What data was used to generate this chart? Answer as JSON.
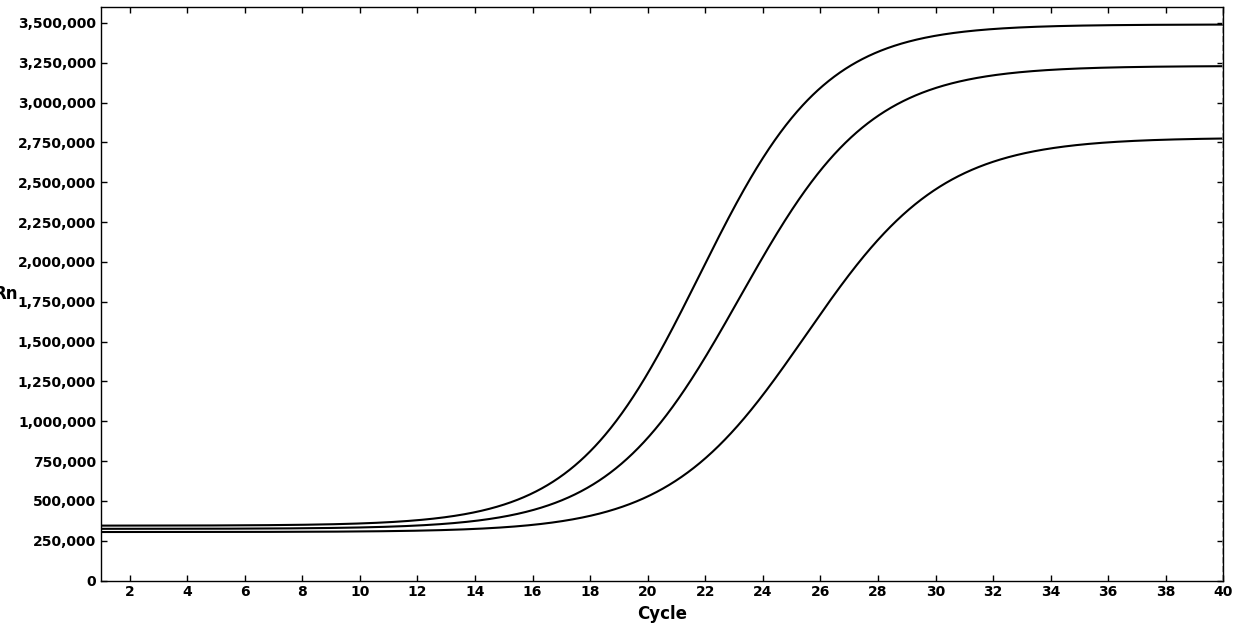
{
  "title": "",
  "xlabel": "Cycle",
  "ylabel": "Rn",
  "xlim": [
    1,
    40
  ],
  "ylim": [
    0,
    3600000
  ],
  "x_ticks": [
    2,
    4,
    6,
    8,
    10,
    12,
    14,
    16,
    18,
    20,
    22,
    24,
    26,
    28,
    30,
    32,
    34,
    36,
    38,
    40
  ],
  "y_ticks": [
    0,
    250000,
    500000,
    750000,
    1000000,
    1250000,
    1500000,
    1750000,
    2000000,
    2250000,
    2500000,
    2750000,
    3000000,
    3250000,
    3500000
  ],
  "curves": [
    {
      "baseline": 305000,
      "plateau": 2780000,
      "midpoint": 25.5,
      "steepness": 0.42,
      "color": "#000000"
    },
    {
      "baseline": 325000,
      "plateau": 3230000,
      "midpoint": 23.2,
      "steepness": 0.44,
      "color": "#000000"
    },
    {
      "baseline": 345000,
      "plateau": 3490000,
      "midpoint": 21.8,
      "steepness": 0.46,
      "color": "#000000"
    }
  ],
  "vline_x": 40,
  "vline_style": "--",
  "vline_color": "#888888",
  "background_color": "#ffffff",
  "linewidth": 1.5,
  "fontsize_axis_label": 12,
  "fontsize_tick_label": 10
}
